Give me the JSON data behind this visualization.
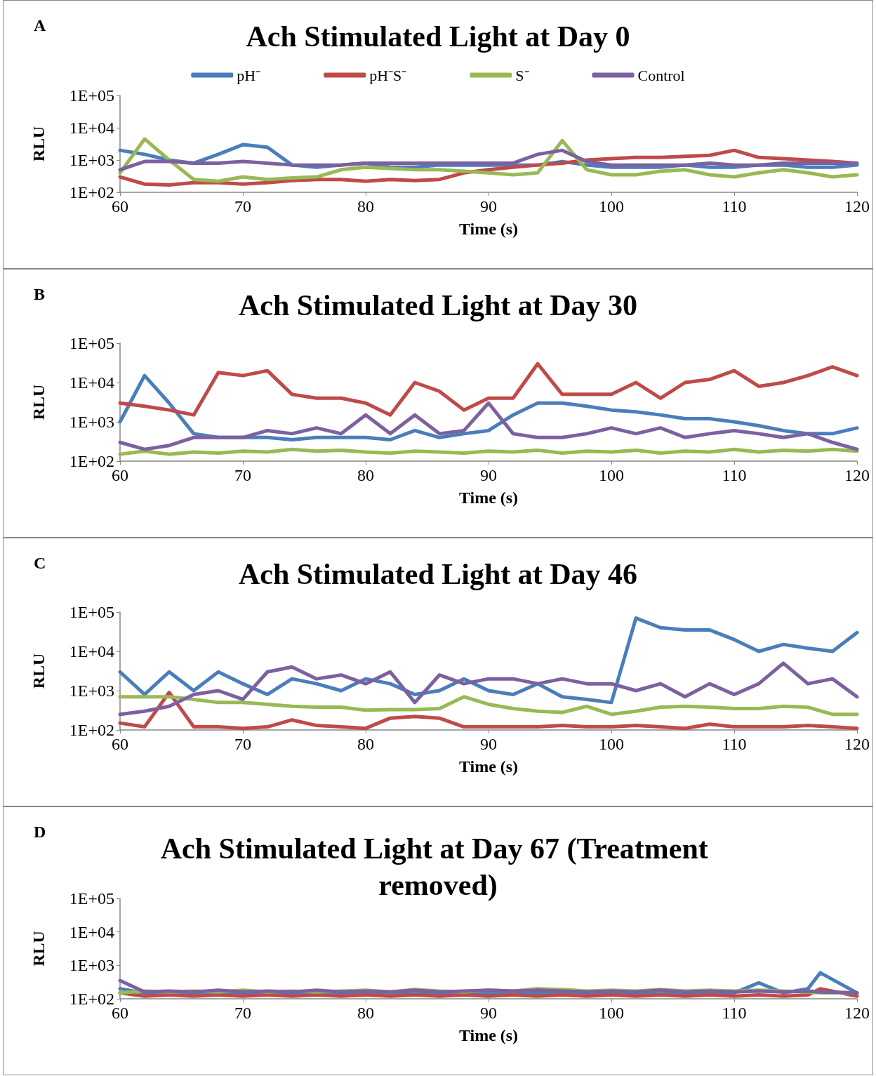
{
  "chart_data": [
    {
      "type": "line",
      "title": "Ach Stimulated Light at Day 0",
      "xlabel": "Time (s)",
      "ylabel": "RLU",
      "annotations": [
        "A"
      ],
      "log": "y",
      "grid": false,
      "legend": "top",
      "marker": "none",
      "line_style": "solid",
      "xlim": [
        60,
        120
      ],
      "xticks": [
        60,
        70,
        80,
        90,
        100,
        110,
        120
      ],
      "ylim": [
        100,
        100000
      ],
      "yticks": [
        {
          "value": 100,
          "label": "1E+02"
        },
        {
          "value": 1000,
          "label": "1E+03"
        },
        {
          "value": 10000,
          "label": "1E+04"
        },
        {
          "value": 100000,
          "label": "1E+05"
        }
      ],
      "x": [
        60,
        62,
        64,
        66,
        68,
        70,
        72,
        74,
        76,
        78,
        80,
        82,
        84,
        86,
        88,
        90,
        92,
        94,
        96,
        98,
        100,
        102,
        104,
        106,
        108,
        110,
        112,
        114,
        116,
        118,
        120
      ],
      "series": [
        {
          "name": "pH⁻",
          "color": "#4a7ebb",
          "values": [
            2000,
            1500,
            1000,
            800,
            1500,
            3000,
            2500,
            700,
            600,
            700,
            800,
            600,
            600,
            700,
            700,
            700,
            700,
            700,
            900,
            700,
            600,
            600,
            600,
            700,
            600,
            600,
            700,
            700,
            600,
            600,
            700
          ]
        },
        {
          "name": "pH⁻S⁻",
          "color": "#be4b48",
          "values": [
            300,
            180,
            170,
            200,
            200,
            180,
            200,
            230,
            250,
            250,
            220,
            250,
            230,
            250,
            400,
            500,
            600,
            700,
            800,
            1000,
            1100,
            1200,
            1200,
            1300,
            1400,
            2000,
            1200,
            1100,
            1000,
            900,
            800
          ]
        },
        {
          "name": "S⁻",
          "color": "#98b954",
          "values": [
            400,
            4500,
            1000,
            250,
            220,
            300,
            250,
            280,
            300,
            500,
            600,
            550,
            500,
            500,
            450,
            400,
            350,
            400,
            4000,
            500,
            350,
            350,
            450,
            500,
            350,
            300,
            400,
            500,
            400,
            300,
            350
          ]
        },
        {
          "name": "Control",
          "color": "#7d60a0",
          "values": [
            500,
            900,
            900,
            800,
            800,
            900,
            800,
            700,
            700,
            700,
            800,
            800,
            800,
            800,
            800,
            800,
            800,
            1500,
            2000,
            900,
            700,
            700,
            700,
            700,
            800,
            700,
            700,
            800,
            800,
            800,
            800
          ]
        }
      ]
    },
    {
      "type": "line",
      "title": "Ach Stimulated Light at Day 30",
      "xlabel": "Time (s)",
      "ylabel": "RLU",
      "annotations": [
        "B"
      ],
      "log": "y",
      "grid": false,
      "marker": "none",
      "line_style": "solid",
      "xlim": [
        60,
        120
      ],
      "xticks": [
        60,
        70,
        80,
        90,
        100,
        110,
        120
      ],
      "ylim": [
        100,
        100000
      ],
      "yticks": [
        {
          "value": 100,
          "label": "1E+02"
        },
        {
          "value": 1000,
          "label": "1E+03"
        },
        {
          "value": 10000,
          "label": "1E+04"
        },
        {
          "value": 100000,
          "label": "1E+05"
        }
      ],
      "x": [
        60,
        62,
        64,
        66,
        68,
        70,
        72,
        74,
        76,
        78,
        80,
        82,
        84,
        86,
        88,
        90,
        92,
        94,
        96,
        98,
        100,
        102,
        104,
        106,
        108,
        110,
        112,
        114,
        116,
        118,
        120
      ],
      "series": [
        {
          "color": "#4a7ebb",
          "values": [
            1000,
            15000,
            3000,
            500,
            400,
            400,
            400,
            350,
            400,
            400,
            400,
            350,
            600,
            400,
            500,
            600,
            1500,
            3000,
            3000,
            2500,
            2000,
            1800,
            1500,
            1200,
            1200,
            1000,
            800,
            600,
            500,
            500,
            700
          ]
        },
        {
          "color": "#be4b48",
          "values": [
            3000,
            2500,
            2000,
            1500,
            18000,
            15000,
            20000,
            5000,
            4000,
            4000,
            3000,
            1500,
            10000,
            6000,
            2000,
            4000,
            4000,
            30000,
            5000,
            5000,
            5000,
            10000,
            4000,
            10000,
            12000,
            20000,
            8000,
            10000,
            15000,
            25000,
            15000
          ]
        },
        {
          "color": "#98b954",
          "values": [
            150,
            180,
            150,
            170,
            160,
            180,
            170,
            200,
            180,
            190,
            170,
            160,
            180,
            170,
            160,
            180,
            170,
            190,
            160,
            180,
            170,
            190,
            160,
            180,
            170,
            200,
            170,
            190,
            180,
            200,
            180
          ]
        },
        {
          "color": "#7d60a0",
          "values": [
            300,
            200,
            250,
            400,
            400,
            400,
            600,
            500,
            700,
            500,
            1500,
            500,
            1500,
            500,
            600,
            3000,
            500,
            400,
            400,
            500,
            700,
            500,
            700,
            400,
            500,
            600,
            500,
            400,
            500,
            300,
            200
          ]
        }
      ]
    },
    {
      "type": "line",
      "title": "Ach Stimulated Light at Day 46",
      "xlabel": "Time (s)",
      "ylabel": "RLU",
      "annotations": [
        "C"
      ],
      "log": "y",
      "grid": false,
      "marker": "none",
      "line_style": "solid",
      "xlim": [
        60,
        120
      ],
      "xticks": [
        60,
        70,
        80,
        90,
        100,
        110,
        120
      ],
      "ylim": [
        100,
        100000
      ],
      "yticks": [
        {
          "value": 100,
          "label": "1E+02"
        },
        {
          "value": 1000,
          "label": "1E+03"
        },
        {
          "value": 10000,
          "label": "1E+04"
        },
        {
          "value": 100000,
          "label": "1E+05"
        }
      ],
      "x": [
        60,
        62,
        64,
        66,
        68,
        70,
        72,
        74,
        76,
        78,
        80,
        82,
        84,
        86,
        88,
        90,
        92,
        94,
        96,
        98,
        100,
        102,
        104,
        106,
        108,
        110,
        112,
        114,
        116,
        118,
        120
      ],
      "series": [
        {
          "color": "#4a7ebb",
          "values": [
            3000,
            800,
            3000,
            1000,
            3000,
            1500,
            800,
            2000,
            1500,
            1000,
            2000,
            1500,
            800,
            1000,
            2000,
            1000,
            800,
            1500,
            700,
            600,
            500,
            70000,
            40000,
            35000,
            35000,
            20000,
            10000,
            15000,
            12000,
            10000,
            30000
          ]
        },
        {
          "color": "#be4b48",
          "values": [
            150,
            120,
            900,
            120,
            120,
            110,
            120,
            180,
            130,
            120,
            110,
            200,
            220,
            200,
            120,
            120,
            120,
            120,
            130,
            120,
            120,
            130,
            120,
            110,
            140,
            120,
            120,
            120,
            130,
            120,
            110
          ]
        },
        {
          "color": "#98b954",
          "values": [
            700,
            700,
            700,
            600,
            500,
            500,
            450,
            400,
            380,
            380,
            320,
            330,
            330,
            350,
            700,
            450,
            350,
            300,
            280,
            400,
            250,
            300,
            380,
            400,
            380,
            350,
            350,
            400,
            380,
            250,
            250
          ]
        },
        {
          "color": "#7d60a0",
          "values": [
            250,
            300,
            400,
            800,
            1000,
            600,
            3000,
            4000,
            2000,
            2500,
            1500,
            3000,
            500,
            2500,
            1500,
            2000,
            2000,
            1500,
            2000,
            1500,
            1500,
            1000,
            1500,
            700,
            1500,
            800,
            1500,
            5000,
            1500,
            2000,
            700
          ]
        }
      ]
    },
    {
      "type": "line",
      "title": "Ach Stimulated Light at Day 67 (Treatment removed)",
      "xlabel": "Time (s)",
      "ylabel": "RLU",
      "annotations": [
        "D"
      ],
      "log": "y",
      "grid": false,
      "marker": "none",
      "line_style": "solid",
      "xlim": [
        60,
        120
      ],
      "xticks": [
        60,
        70,
        80,
        90,
        100,
        110,
        120
      ],
      "ylim": [
        100,
        100000
      ],
      "yticks": [
        {
          "value": 100,
          "label": "1E+02"
        },
        {
          "value": 1000,
          "label": "1E+03"
        },
        {
          "value": 10000,
          "label": "1E+04"
        },
        {
          "value": 100000,
          "label": "1E+05"
        }
      ],
      "x": [
        60,
        62,
        64,
        66,
        68,
        70,
        72,
        74,
        76,
        78,
        80,
        82,
        84,
        86,
        88,
        90,
        92,
        94,
        96,
        98,
        100,
        102,
        104,
        106,
        108,
        110,
        112,
        114,
        116,
        117,
        120
      ],
      "series": [
        {
          "color": "#4a7ebb",
          "values": [
            200,
            150,
            140,
            150,
            140,
            150,
            140,
            150,
            140,
            150,
            140,
            150,
            140,
            150,
            140,
            150,
            140,
            150,
            140,
            150,
            140,
            150,
            140,
            150,
            140,
            150,
            300,
            150,
            200,
            600,
            150
          ]
        },
        {
          "color": "#be4b48",
          "values": [
            150,
            120,
            130,
            120,
            130,
            120,
            130,
            120,
            130,
            120,
            130,
            120,
            130,
            120,
            130,
            120,
            130,
            120,
            130,
            120,
            130,
            120,
            130,
            120,
            130,
            120,
            130,
            120,
            130,
            200,
            120
          ]
        },
        {
          "color": "#98b954",
          "values": [
            150,
            170,
            160,
            170,
            160,
            180,
            160,
            170,
            160,
            170,
            180,
            160,
            190,
            170,
            160,
            180,
            170,
            200,
            190,
            170,
            180,
            170,
            190,
            170,
            180,
            170,
            180,
            170,
            160,
            150,
            150
          ]
        },
        {
          "color": "#7d60a0",
          "values": [
            350,
            160,
            170,
            160,
            180,
            160,
            170,
            160,
            180,
            160,
            170,
            160,
            180,
            160,
            170,
            180,
            170,
            180,
            170,
            160,
            170,
            160,
            180,
            160,
            170,
            160,
            170,
            160,
            170,
            160,
            150
          ]
        }
      ]
    }
  ]
}
